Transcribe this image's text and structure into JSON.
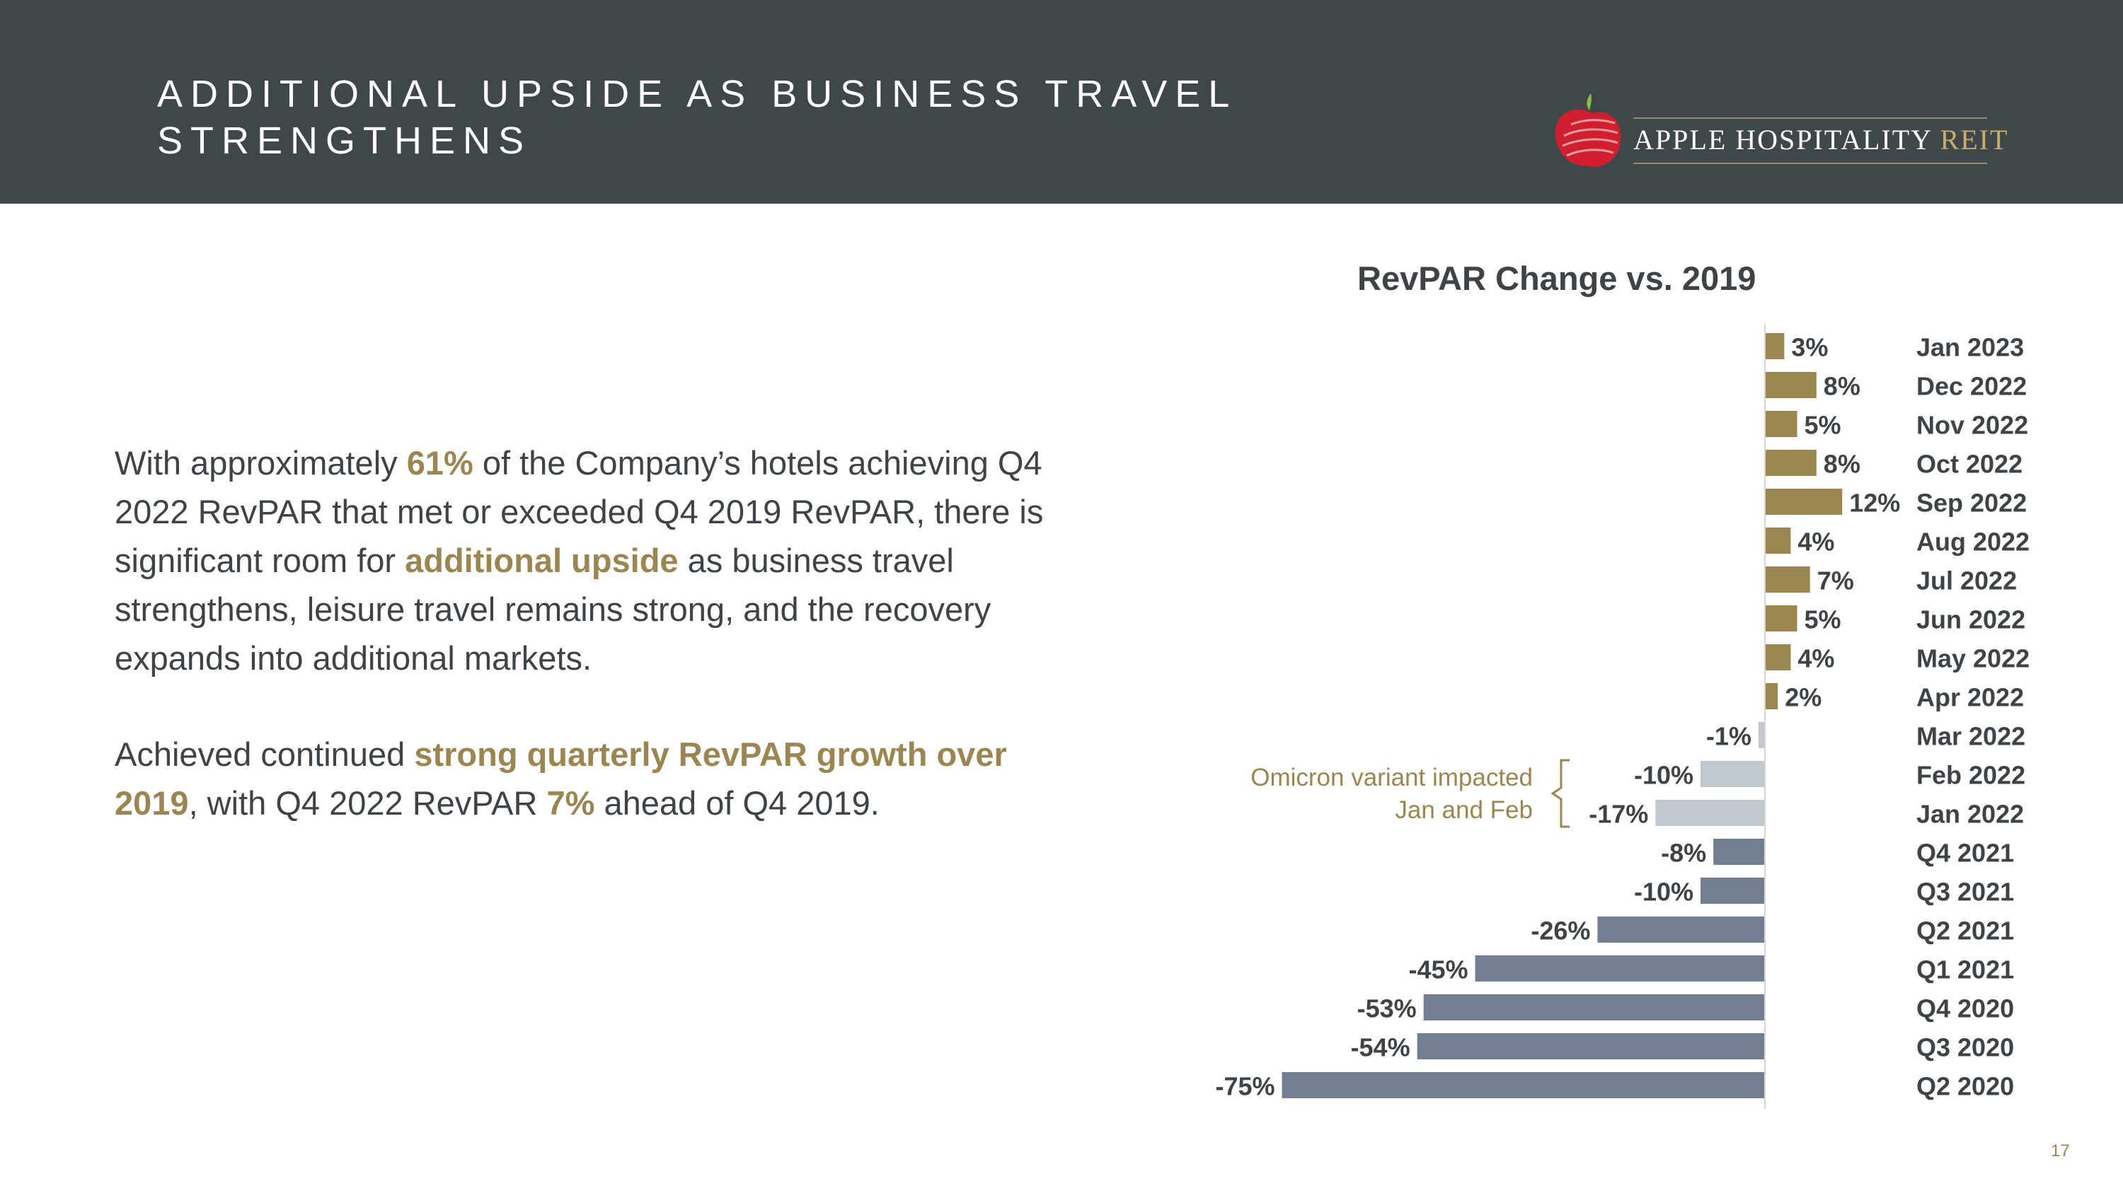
{
  "header": {
    "title_line1": "ADDITIONAL UPSIDE AS BUSINESS TRAVEL",
    "title_line2": "STRENGTHENS",
    "logo": {
      "brand": "APPLE HOSPITALITY",
      "suffix": "REIT"
    }
  },
  "body": {
    "p1": {
      "t1": "With approximately ",
      "h1": "61%",
      "t2": " of the Company’s hotels achieving Q4 2022 RevPAR that met or exceeded Q4 2019 RevPAR, there is significant room for ",
      "h2": "additional upside",
      "t3": " as business travel strengthens, leisure travel remains strong, and the recovery expands into additional markets."
    },
    "p2": {
      "t1": "Achieved continued ",
      "h1": "strong quarterly RevPAR growth over 2019",
      "t2": ", with Q4 2022 RevPAR ",
      "h2": "7%",
      "t3": " ahead of Q4 2019."
    }
  },
  "chart_data": {
    "type": "bar",
    "orientation": "horizontal",
    "title": "RevPAR Change vs. 2019",
    "categories": [
      "Jan 2023",
      "Dec 2022",
      "Nov 2022",
      "Oct 2022",
      "Sep 2022",
      "Aug 2022",
      "Jul 2022",
      "Jun 2022",
      "May 2022",
      "Apr 2022",
      "Mar 2022",
      "Feb 2022",
      "Jan 2022",
      "Q4 2021",
      "Q3 2021",
      "Q2 2021",
      "Q1 2021",
      "Q4 2020",
      "Q3 2020",
      "Q2 2020"
    ],
    "values": [
      3,
      8,
      5,
      8,
      12,
      4,
      7,
      5,
      4,
      2,
      -1,
      -10,
      -17,
      -8,
      -10,
      -26,
      -45,
      -53,
      -54,
      -75
    ],
    "value_labels": [
      "3%",
      "8%",
      "5%",
      "8%",
      "12%",
      "4%",
      "7%",
      "5%",
      "4%",
      "2%",
      "-1%",
      "-10%",
      "-17%",
      "-8%",
      "-10%",
      "-26%",
      "-45%",
      "-53%",
      "-54%",
      "-75%"
    ],
    "bar_colors": {
      "positive": "#9b8652",
      "negative_2022": "#c2c8cf",
      "negative_pre_2022": "#717f91"
    },
    "annotation": {
      "line1": "Omicron variant impacted",
      "line2": "Jan and Feb",
      "applies_to": [
        "Feb 2022",
        "Jan 2022"
      ]
    },
    "grid": false,
    "legend": "none"
  },
  "colors": {
    "header_bg": "#3f474b",
    "accent_gold": "#9b8652",
    "text_dark": "#3d4346",
    "logo_red": "#d0202f"
  },
  "page_number": "17"
}
